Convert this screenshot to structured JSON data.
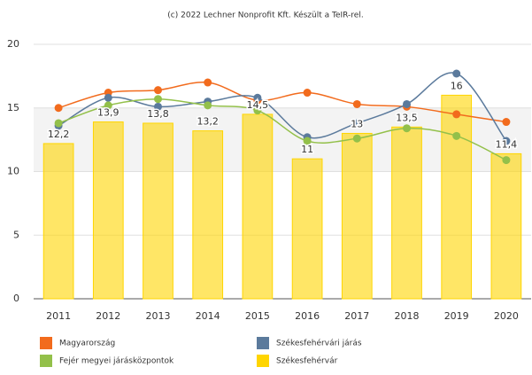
{
  "chart_data": {
    "type": "bar",
    "title": "(c) 2022 Lechner Nonprofit Kft. Készült a TeIR-rel.",
    "categories": [
      "2011",
      "2012",
      "2013",
      "2014",
      "2015",
      "2016",
      "2017",
      "2018",
      "2019",
      "2020"
    ],
    "ylim": [
      0,
      20
    ],
    "yticks": [
      0,
      5,
      10,
      15,
      20
    ],
    "grid": true,
    "plot_band": [
      10,
      15
    ],
    "series": [
      {
        "name": "Magyarország",
        "color": "#f26b1d",
        "type": "line",
        "values": [
          15.0,
          16.2,
          16.4,
          17.0,
          15.6,
          16.2,
          15.3,
          15.1,
          14.5,
          13.9
        ]
      },
      {
        "name": "Székesfehérvári járás",
        "color": "#5b7a9c",
        "type": "line",
        "values": [
          13.6,
          15.8,
          15.1,
          15.5,
          15.8,
          12.7,
          13.8,
          15.3,
          17.7,
          12.4
        ]
      },
      {
        "name": "Fejér megyei járásközpontok",
        "color": "#93c04a",
        "type": "line",
        "values": [
          13.8,
          15.2,
          15.7,
          15.2,
          14.8,
          12.4,
          12.6,
          13.4,
          12.8,
          10.9
        ]
      },
      {
        "name": "Székesfehérvár",
        "color": "#ffd500",
        "type": "bar",
        "values": [
          12.2,
          13.9,
          13.8,
          13.2,
          14.5,
          11,
          13,
          13.5,
          16,
          11.4
        ],
        "value_labels": [
          "12,2",
          "13,9",
          "13,8",
          "13,2",
          "14,5",
          "11",
          "13",
          "13,5",
          "16",
          "11,4"
        ]
      }
    ]
  }
}
